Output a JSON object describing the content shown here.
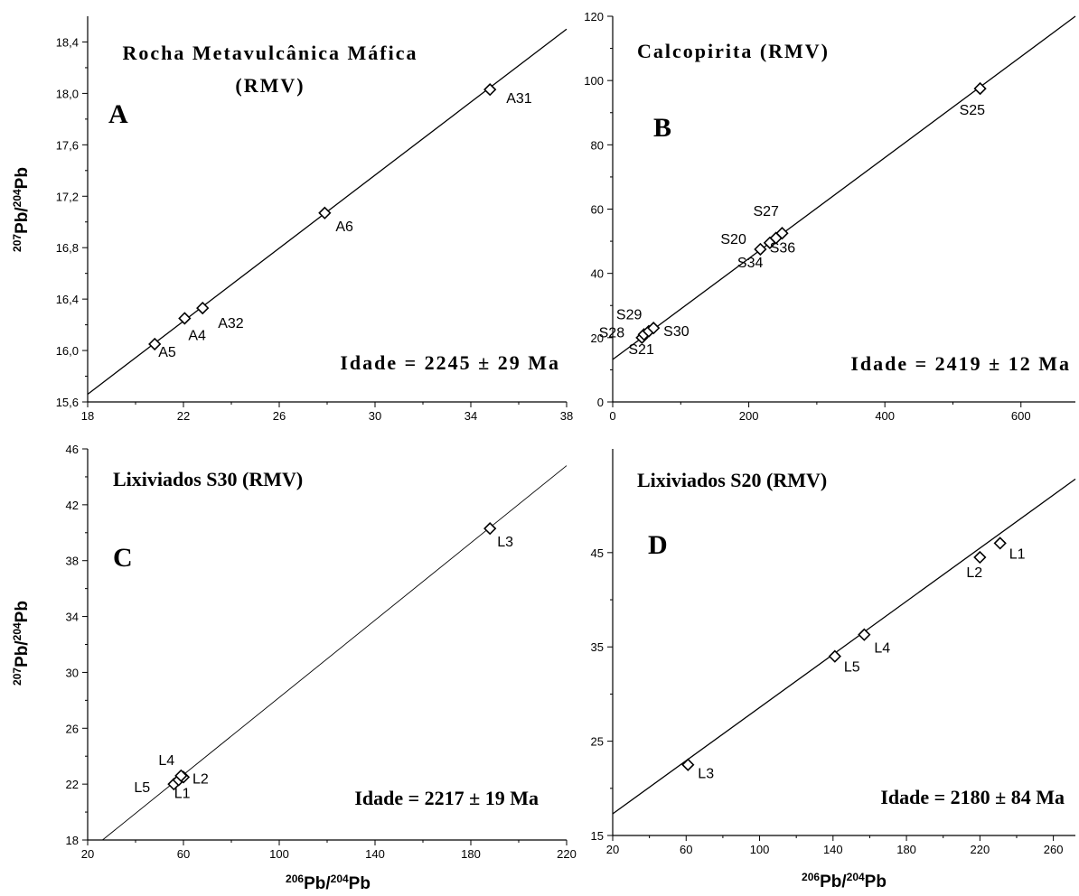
{
  "axes": {
    "y_label": {
      "m1": "207",
      "t1": "Pb/",
      "m2": "204",
      "t2": "Pb"
    },
    "x_label": {
      "m1": "206",
      "t1": "Pb/",
      "m2": "204",
      "t2": "Pb"
    }
  },
  "chart_data": [
    {
      "panel": "A",
      "type": "scatter",
      "title_lines": [
        "Rocha Metavulcânica Máfica",
        "(RMV)"
      ],
      "age": "Idade = 2245 ± 29 Ma",
      "xlim": [
        18,
        38
      ],
      "ylim": [
        15.6,
        18.6
      ],
      "xticks": [
        18,
        22,
        26,
        30,
        34,
        38
      ],
      "xtick_labels": [
        "18",
        "22",
        "26",
        "30",
        "34",
        "38"
      ],
      "yticks": [
        15.6,
        16.0,
        16.4,
        16.8,
        17.2,
        17.6,
        18.0,
        18.4
      ],
      "ytick_labels": [
        "15,6",
        "16,0",
        "16,4",
        "16,8",
        "17,2",
        "17,6",
        "18,0",
        "18,4"
      ],
      "points": [
        {
          "label": "A5",
          "x": 20.8,
          "y": 16.05
        },
        {
          "label": "A4",
          "x": 22.05,
          "y": 16.25
        },
        {
          "label": "A32",
          "x": 22.8,
          "y": 16.33
        },
        {
          "label": "A6",
          "x": 27.9,
          "y": 17.07
        },
        {
          "label": "A31",
          "x": 34.8,
          "y": 18.03
        }
      ],
      "line": [
        [
          18,
          15.66
        ],
        [
          38,
          18.5
        ]
      ]
    },
    {
      "panel": "B",
      "type": "scatter",
      "title_lines": [
        "Calcopirita (RMV)"
      ],
      "age": "Idade = 2419 ± 12 Ma",
      "xlim": [
        0,
        680
      ],
      "ylim": [
        0,
        120
      ],
      "xticks": [
        0,
        200,
        400,
        600
      ],
      "xtick_labels": [
        "0",
        "200",
        "400",
        "600"
      ],
      "yticks": [
        0,
        20,
        40,
        60,
        80,
        100,
        120
      ],
      "ytick_labels": [
        "0",
        "20",
        "40",
        "60",
        "80",
        "100",
        "120"
      ],
      "points": [
        {
          "label": "S21",
          "x": 43,
          "y": 20
        },
        {
          "label": "S28",
          "x": 46,
          "y": 21
        },
        {
          "label": "S29",
          "x": 53,
          "y": 22
        },
        {
          "label": "S30",
          "x": 60,
          "y": 23
        },
        {
          "label": "S20",
          "x": 217,
          "y": 47.5
        },
        {
          "label": "S34",
          "x": 231,
          "y": 49.5
        },
        {
          "label": "S36",
          "x": 240,
          "y": 51
        },
        {
          "label": "S27",
          "x": 249,
          "y": 52.5
        },
        {
          "label": "S25",
          "x": 540,
          "y": 97.5
        }
      ],
      "line": [
        [
          0,
          13.2
        ],
        [
          680,
          120
        ]
      ]
    },
    {
      "panel": "C",
      "type": "scatter",
      "title_lines": [
        "Lixiviados S30 (RMV)"
      ],
      "age": "Idade = 2217 ± 19 Ma",
      "xlim": [
        20,
        220
      ],
      "ylim": [
        18,
        46
      ],
      "xticks": [
        20,
        60,
        100,
        140,
        180,
        220
      ],
      "xtick_labels": [
        "20",
        "60",
        "100",
        "140",
        "180",
        "220"
      ],
      "yticks": [
        18,
        22,
        26,
        30,
        34,
        38,
        42,
        46
      ],
      "ytick_labels": [
        "18",
        "22",
        "26",
        "30",
        "34",
        "38",
        "42",
        "46"
      ],
      "points": [
        {
          "label": "L5",
          "x": 56,
          "y": 22
        },
        {
          "label": "L1",
          "x": 58,
          "y": 22.3
        },
        {
          "label": "L2",
          "x": 60,
          "y": 22.5
        },
        {
          "label": "L4",
          "x": 59,
          "y": 22.6
        },
        {
          "label": "L3",
          "x": 188,
          "y": 40.3
        }
      ],
      "line": [
        [
          26.2,
          18
        ],
        [
          220,
          44.8
        ]
      ]
    },
    {
      "panel": "D",
      "type": "scatter",
      "title_lines": [
        "Lixiviados S20 (RMV)"
      ],
      "age": "Idade = 2180 ± 84 Ma",
      "xlim": [
        20,
        272
      ],
      "ylim": [
        15,
        56
      ],
      "xticks": [
        20,
        60,
        100,
        140,
        180,
        220,
        260
      ],
      "xtick_labels": [
        "20",
        "60",
        "100",
        "140",
        "180",
        "220",
        "260"
      ],
      "yticks": [
        15,
        25,
        35,
        45
      ],
      "ytick_labels": [
        "15",
        "25",
        "35",
        "45"
      ],
      "points": [
        {
          "label": "L3",
          "x": 61,
          "y": 22.5
        },
        {
          "label": "L5",
          "x": 141,
          "y": 34
        },
        {
          "label": "L4",
          "x": 157,
          "y": 36.3
        },
        {
          "label": "L2",
          "x": 220,
          "y": 44.5
        },
        {
          "label": "L1",
          "x": 231,
          "y": 46
        }
      ],
      "line": [
        [
          20,
          17.3
        ],
        [
          272,
          52.8
        ]
      ]
    }
  ]
}
